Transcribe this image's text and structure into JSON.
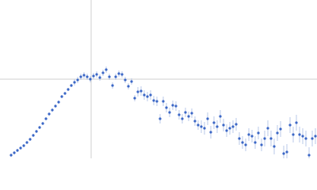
{
  "chart_data": {
    "type": "scatter",
    "x": [
      14,
      18,
      22,
      26,
      30,
      34,
      38,
      42,
      46,
      50,
      54,
      58,
      62,
      66,
      70,
      74,
      78,
      82,
      86,
      90,
      94,
      98,
      102,
      106,
      110,
      114,
      118,
      122,
      126,
      130,
      134,
      138,
      142,
      146,
      150,
      154,
      158,
      162,
      166,
      170,
      174,
      178,
      182,
      186,
      190,
      194,
      198,
      202,
      206,
      210,
      214,
      218,
      222,
      226,
      230,
      234,
      238,
      242,
      246,
      250,
      254,
      258,
      262,
      266,
      270,
      274,
      278,
      282,
      286,
      290,
      294,
      298,
      302,
      306,
      310,
      314,
      318,
      322,
      326,
      330,
      334,
      338,
      342,
      346,
      350,
      354,
      358,
      362,
      366,
      370,
      374,
      378,
      382,
      386,
      390,
      394,
      398
    ],
    "series": [
      {
        "color": "#3b67c6",
        "error_color": "#a9bbe3",
        "values": [
          4,
          7,
          10,
          13,
          16,
          20,
          24,
          29,
          34,
          39,
          44,
          50,
          56,
          61,
          66,
          71,
          78,
          82,
          87,
          92,
          96,
          99,
          103,
          105,
          103,
          100,
          104,
          106,
          102,
          108,
          112,
          103,
          92,
          103,
          107,
          106,
          99,
          91,
          97,
          76,
          84,
          85,
          80,
          78,
          80,
          73,
          72,
          50,
          72,
          64,
          58,
          67,
          66,
          55,
          50,
          58,
          53,
          57,
          47,
          42,
          40,
          38,
          50,
          33,
          45,
          40,
          53,
          42,
          35,
          38,
          40,
          43,
          25,
          20,
          17,
          30,
          28,
          20,
          32,
          17,
          25,
          38,
          25,
          15,
          32,
          37,
          6,
          8,
          42,
          30,
          45,
          30,
          28,
          25,
          4,
          25,
          28
        ],
        "errors": [
          2,
          2,
          2,
          2,
          2,
          2,
          2,
          2,
          2,
          2,
          2,
          2,
          2,
          2,
          2,
          2,
          2,
          2,
          2,
          2,
          4,
          4,
          4,
          4,
          4,
          4,
          4,
          4,
          4,
          4,
          4,
          4,
          4,
          4,
          4,
          4,
          4,
          4,
          4,
          4,
          6,
          6,
          6,
          6,
          6,
          6,
          6,
          6,
          6,
          6,
          6,
          6,
          6,
          6,
          6,
          6,
          6,
          6,
          6,
          6,
          8,
          8,
          8,
          8,
          8,
          8,
          8,
          8,
          8,
          8,
          8,
          8,
          8,
          8,
          8,
          8,
          8,
          8,
          8,
          8,
          10,
          10,
          10,
          10,
          10,
          10,
          10,
          10,
          10,
          10,
          10,
          10,
          10,
          10,
          10,
          10,
          10
        ]
      }
    ],
    "xlim": [
      0,
      400
    ],
    "ylim": [
      0,
      200
    ],
    "reference_lines": {
      "x": 115,
      "y": 100
    }
  }
}
